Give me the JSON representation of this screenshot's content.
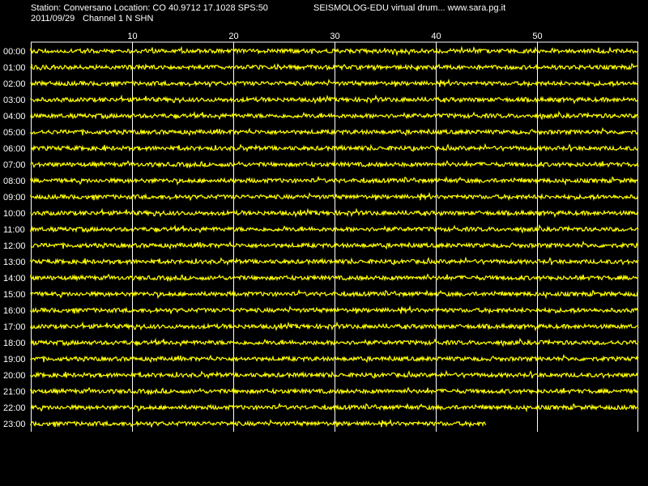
{
  "header": {
    "station_line": "Station: Conversano Location: CO 40.9712 17.1028 SPS:50",
    "credit_line": "SEISMOLOG-EDU virtual drum... www.sara.pg.it",
    "date": "2011/09/29",
    "channel_line": "Channel 1 N SHN"
  },
  "colors": {
    "background": "#000000",
    "trace": "#ffff00",
    "grid": "#ffffff",
    "text": "#ffffff"
  },
  "chart_data": {
    "type": "line",
    "x_unit": "minutes",
    "xlim": [
      0,
      60
    ],
    "x_ticks": [
      10,
      20,
      30,
      40,
      50
    ],
    "rows": [
      "00:00",
      "01:00",
      "02:00",
      "03:00",
      "04:00",
      "05:00",
      "06:00",
      "07:00",
      "08:00",
      "09:00",
      "10:00",
      "11:00",
      "12:00",
      "13:00",
      "14:00",
      "15:00",
      "16:00",
      "17:00",
      "18:00",
      "19:00",
      "20:00",
      "21:00",
      "22:00",
      "23:00"
    ],
    "row_end_minute": [
      60,
      60,
      60,
      60,
      60,
      60,
      60,
      60,
      60,
      60,
      60,
      60,
      60,
      60,
      60,
      60,
      60,
      60,
      60,
      60,
      60,
      60,
      60,
      45
    ],
    "grid": true
  }
}
